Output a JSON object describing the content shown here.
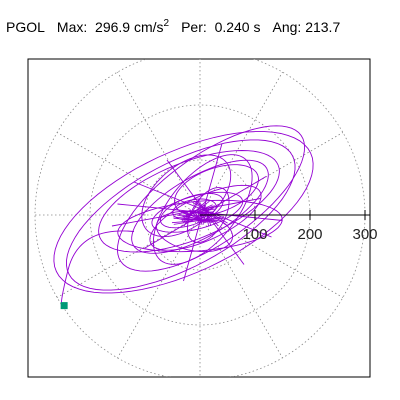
{
  "header": {
    "station": "PGOL",
    "max_label": "Max:",
    "max_value": "296.9",
    "max_unit": "cm/s",
    "max_unit_exp": "2",
    "per_label": "Per:",
    "per_value": "0.240 s",
    "ang_label": "Ang:",
    "ang_value": "213.7"
  },
  "chart_data": {
    "type": "line",
    "title": "",
    "xlabel": "",
    "ylabel": "",
    "coordinate": "polar",
    "rlim": [
      0,
      300
    ],
    "radial_ticks": [
      100,
      200,
      300
    ],
    "radial_tick_labels": [
      "100",
      "200",
      "300"
    ],
    "grid": true,
    "grid_style": "dotted",
    "angular_grid_step_deg": 30,
    "series": [
      {
        "color": "#9400d3",
        "peak": {
          "value": 296.9,
          "angle_deg": 213.7
        },
        "loops": [
          {
            "cx": -10,
            "cy": 10,
            "a": 40,
            "b": 18,
            "rot": 10
          },
          {
            "cx": -15,
            "cy": 8,
            "a": 60,
            "b": 25,
            "rot": 20
          },
          {
            "cx": -5,
            "cy": 5,
            "a": 85,
            "b": 30,
            "rot": 15
          },
          {
            "cx": 10,
            "cy": -5,
            "a": 110,
            "b": 40,
            "rot": 25
          },
          {
            "cx": 0,
            "cy": 15,
            "a": 140,
            "b": 55,
            "rot": 30
          },
          {
            "cx": -20,
            "cy": 25,
            "a": 175,
            "b": 70,
            "rot": 22
          },
          {
            "cx": 20,
            "cy": 30,
            "a": 200,
            "b": 80,
            "rot": 35
          },
          {
            "cx": -35,
            "cy": 0,
            "a": 230,
            "b": 95,
            "rot": 28
          },
          {
            "cx": 0,
            "cy": -20,
            "a": 150,
            "b": 45,
            "rot": 5
          },
          {
            "cx": 5,
            "cy": 10,
            "a": 120,
            "b": 60,
            "rot": 50
          },
          {
            "cx": -25,
            "cy": 35,
            "a": 95,
            "b": 55,
            "rot": 40
          },
          {
            "cx": 30,
            "cy": 45,
            "a": 80,
            "b": 40,
            "rot": 20
          },
          {
            "cx": -10,
            "cy": -30,
            "a": 70,
            "b": 35,
            "rot": -10
          },
          {
            "cx": -30,
            "cy": 5,
            "a": 255,
            "b": 110,
            "rot": 25
          },
          {
            "cx": 15,
            "cy": 0,
            "a": 55,
            "b": 30,
            "rot": 60
          }
        ]
      }
    ],
    "star_lines": [
      [
        -150,
        20,
        150,
        -10
      ],
      [
        -100,
        -60,
        120,
        70
      ],
      [
        -60,
        100,
        80,
        -90
      ],
      [
        -120,
        60,
        130,
        -40
      ],
      [
        -30,
        -120,
        40,
        130
      ],
      [
        -160,
        -20,
        110,
        30
      ]
    ],
    "end_marker": {
      "color": "#009977",
      "r": 296.9,
      "angle_deg": 213.7
    }
  }
}
